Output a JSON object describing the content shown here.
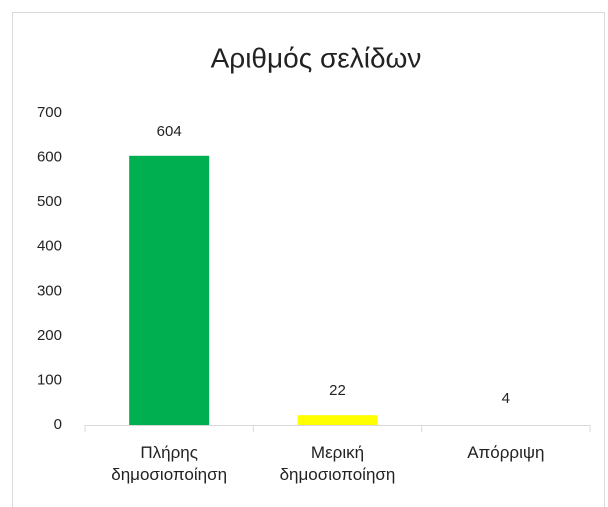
{
  "chart_data": {
    "type": "bar",
    "title": "Αριθμός σελίδων",
    "categories": [
      "Πλήρης δημοσιοποίηση",
      "Μερική δημοσιοποίηση",
      "Απόρριψη"
    ],
    "values": [
      604,
      22,
      4
    ],
    "colors": [
      "#00b050",
      "#ffff00",
      "#ffffff"
    ],
    "ylim": [
      0,
      700
    ],
    "yticks": [
      0,
      100,
      200,
      300,
      400,
      500,
      600,
      700
    ],
    "grid": false
  }
}
